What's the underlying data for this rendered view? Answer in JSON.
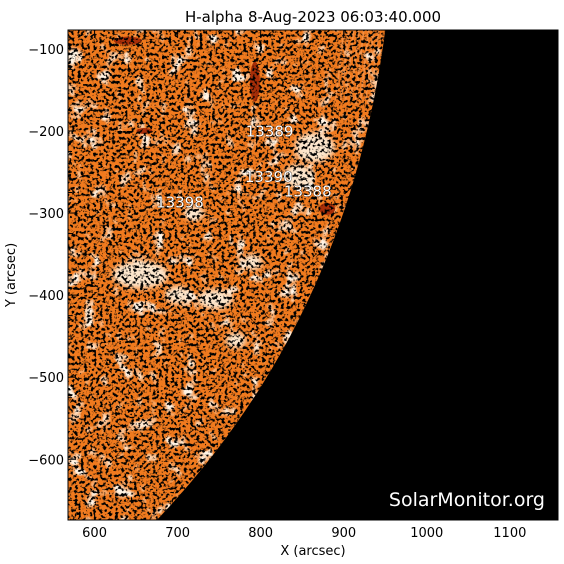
{
  "title": "H-alpha  8-Aug-2023 06:03:40.000",
  "instrument": "H-alpha",
  "date": "8-Aug-2023",
  "time": "06:03:40.000",
  "x_axis": {
    "label": "X (arcsec)",
    "range": [
      568,
      1158
    ],
    "ticks": [
      {
        "value": 600,
        "label": "600"
      },
      {
        "value": 700,
        "label": "700"
      },
      {
        "value": 800,
        "label": "800"
      },
      {
        "value": 900,
        "label": "900"
      },
      {
        "value": 1000,
        "label": "1000"
      },
      {
        "value": 1100,
        "label": "1100"
      }
    ]
  },
  "y_axis": {
    "label": "Y (arcsec)",
    "range": [
      -674,
      -77
    ],
    "ticks": [
      {
        "value": -100,
        "label": "−100"
      },
      {
        "value": -200,
        "label": "−200"
      },
      {
        "value": -300,
        "label": "−300"
      },
      {
        "value": -400,
        "label": "−400"
      },
      {
        "value": -500,
        "label": "−500"
      },
      {
        "value": -600,
        "label": "−600"
      }
    ]
  },
  "active_regions": [
    {
      "id": "13389",
      "x": 782,
      "y": -207
    },
    {
      "id": "13390",
      "x": 781,
      "y": -262
    },
    {
      "id": "13388",
      "x": 828,
      "y": -280
    },
    {
      "id": "13398",
      "x": 674,
      "y": -293
    }
  ],
  "watermark": "SolarMonitor.org",
  "colors": {
    "disk_base": "#f07a1e",
    "disk_dark": "#a82e08",
    "plage": "#fde6cc",
    "space": "#000000",
    "frame": "#000000"
  }
}
